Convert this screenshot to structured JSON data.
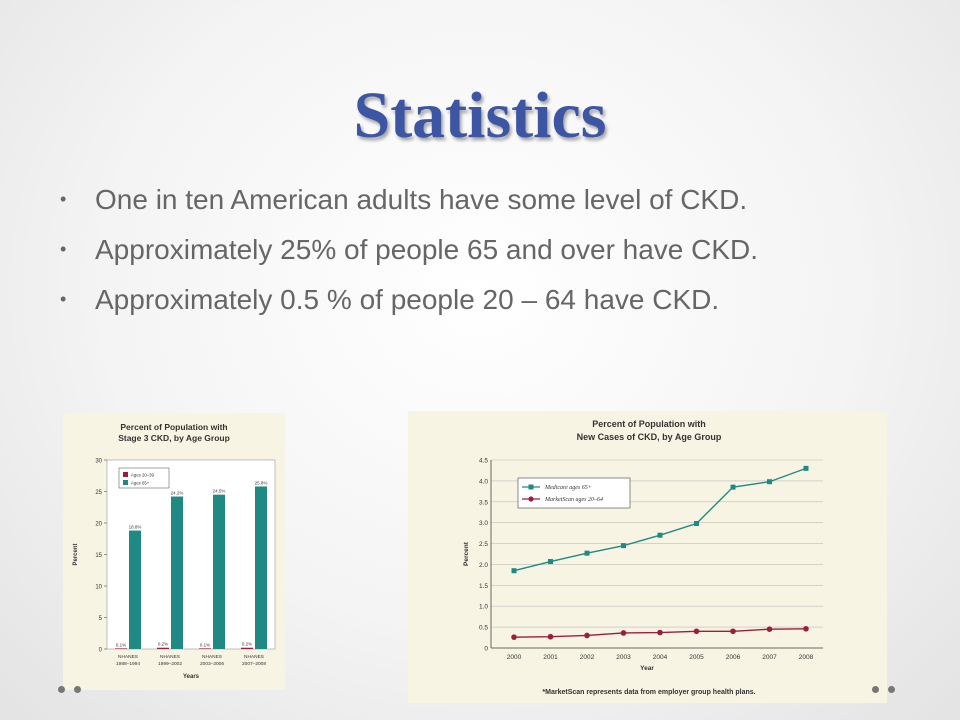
{
  "slide": {
    "title": "Statistics",
    "bullets": [
      "One in ten American adults have some level of CKD.",
      "Approximately 25% of people 65 and over have CKD.",
      "Approximately 0.5 % of people 20 – 64 have CKD."
    ]
  },
  "colors": {
    "title": "#3d56a3",
    "teal": "#1f8a83",
    "maroon": "#9a1f3f",
    "panel_bg": "#f7f4e3"
  },
  "chart_data": [
    {
      "type": "bar",
      "title": "Percent of Population with Stage 3 CKD, by Age Group",
      "xlabel": "Years",
      "ylabel": "Percent",
      "ylim": [
        0,
        30
      ],
      "yticks": [
        0,
        5,
        10,
        15,
        20,
        25,
        30
      ],
      "categories": [
        [
          "NHANES",
          "1988–1994"
        ],
        [
          "NHANES",
          "1999–2002"
        ],
        [
          "NHANES",
          "2003–2006"
        ],
        [
          "NHANES",
          "2007–2008"
        ]
      ],
      "series": [
        {
          "name": "Ages 20–39",
          "color": "#9a1f3f",
          "values": [
            0.1,
            0.2,
            0.1,
            0.2
          ],
          "labels": [
            "0.1%",
            "0.2%",
            "0.1%",
            "0.2%"
          ]
        },
        {
          "name": "Ages 65+",
          "color": "#1f8a83",
          "values": [
            18.8,
            24.2,
            24.5,
            25.8
          ],
          "labels": [
            "18.8%",
            "24.2%",
            "24.5%",
            "25.8%"
          ]
        }
      ],
      "legend_position": "top-left"
    },
    {
      "type": "line",
      "title": "Percent of Population with New Cases of CKD, by Age Group",
      "xlabel": "Year",
      "ylabel": "Percent",
      "ylim": [
        0,
        4.5
      ],
      "yticks": [
        "0",
        "0.5",
        "1.0",
        "1.5",
        "2.0",
        "2.5",
        "3.0",
        "3.5",
        "4.0",
        "4.5"
      ],
      "x": [
        "2000",
        "2001",
        "2002",
        "2003",
        "2004",
        "2005",
        "2006",
        "2007",
        "2008"
      ],
      "series": [
        {
          "name": "Medicare ages 65+",
          "color": "#1f8a83",
          "marker": "square",
          "values": [
            1.85,
            2.07,
            2.27,
            2.45,
            2.7,
            2.98,
            3.85,
            3.98,
            4.3
          ]
        },
        {
          "name": "MarketScan ages 20–64",
          "color": "#9a1f3f",
          "marker": "circle",
          "values": [
            0.26,
            0.27,
            0.3,
            0.36,
            0.37,
            0.4,
            0.4,
            0.45,
            0.46
          ]
        }
      ],
      "legend_position": "top-left",
      "footnote": "*MarketScan represents data from employer group health plans."
    }
  ]
}
